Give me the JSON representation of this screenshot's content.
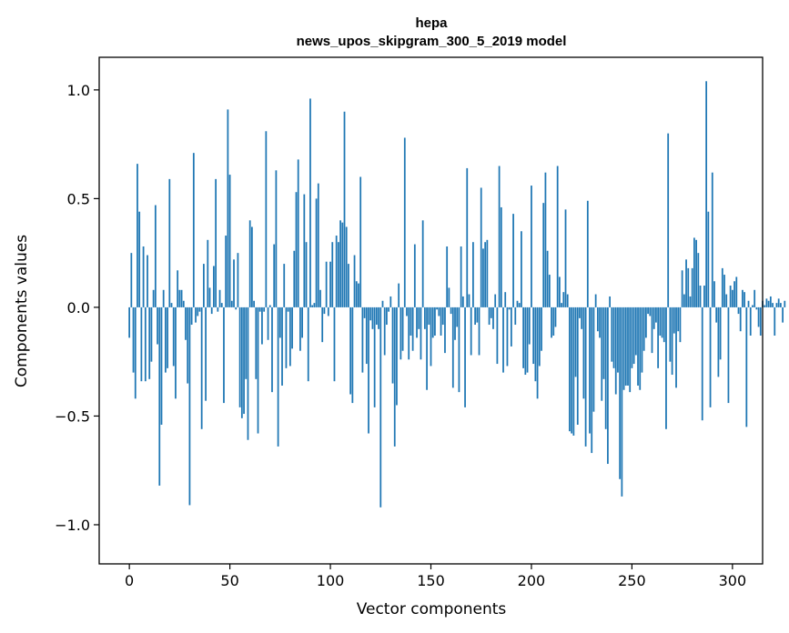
{
  "chart_data": {
    "type": "bar",
    "title": "hepa",
    "subtitle": "news_upos_skipgram_300_5_2019 model",
    "xlabel": "Vector components",
    "ylabel": "Components values",
    "xlim": [
      -15,
      315
    ],
    "ylim": [
      -1.18,
      1.15
    ],
    "x_ticks": [
      0,
      50,
      100,
      150,
      200,
      250,
      300
    ],
    "x_tick_labels": [
      "0",
      "50",
      "100",
      "150",
      "200",
      "250",
      "300"
    ],
    "y_ticks": [
      1.0,
      0.5,
      0.0,
      -0.5,
      -1.0
    ],
    "y_tick_labels": [
      "1.0",
      "0.5",
      "0.0",
      "−0.5",
      "−1.0"
    ],
    "bar_color": "#1f77b4",
    "values": [
      -0.14,
      0.25,
      -0.3,
      -0.42,
      0.66,
      0.44,
      -0.34,
      0.28,
      -0.34,
      0.24,
      -0.33,
      -0.25,
      0.08,
      0.47,
      -0.17,
      -0.82,
      -0.54,
      0.08,
      -0.3,
      -0.28,
      0.59,
      0.02,
      -0.27,
      -0.42,
      0.17,
      0.08,
      0.08,
      0.03,
      -0.15,
      -0.35,
      -0.91,
      -0.08,
      0.71,
      -0.07,
      -0.04,
      -0.02,
      -0.56,
      0.2,
      -0.43,
      0.31,
      0.09,
      -0.03,
      0.19,
      0.59,
      -0.02,
      0.08,
      0.02,
      -0.44,
      0.33,
      0.91,
      0.61,
      0.03,
      0.22,
      -0.01,
      0.25,
      -0.46,
      -0.51,
      -0.49,
      -0.33,
      -0.61,
      0.4,
      0.37,
      0.03,
      -0.33,
      -0.58,
      -0.02,
      -0.17,
      -0.02,
      0.81,
      -0.15,
      0.01,
      -0.39,
      0.29,
      0.63,
      -0.64,
      -0.14,
      -0.36,
      0.2,
      -0.28,
      -0.02,
      -0.27,
      -0.19,
      0.26,
      0.53,
      0.68,
      -0.2,
      -0.14,
      0.52,
      0.3,
      -0.34,
      0.96,
      0.01,
      0.02,
      0.5,
      0.57,
      0.08,
      -0.16,
      -0.03,
      0.21,
      -0.04,
      0.21,
      0.3,
      -0.34,
      0.33,
      0.3,
      0.4,
      0.39,
      0.9,
      0.37,
      0.2,
      -0.4,
      -0.44,
      0.24,
      0.12,
      0.11,
      0.6,
      -0.3,
      -0.05,
      -0.26,
      -0.58,
      -0.06,
      -0.1,
      -0.46,
      -0.08,
      -0.1,
      -0.92,
      0.03,
      -0.22,
      -0.08,
      -0.02,
      0.05,
      -0.35,
      -0.64,
      -0.45,
      0.11,
      -0.24,
      -0.2,
      0.78,
      -0.04,
      -0.24,
      -0.13,
      -0.2,
      0.29,
      -0.14,
      -0.1,
      -0.24,
      0.4,
      -0.1,
      -0.38,
      -0.08,
      -0.27,
      -0.14,
      -0.13,
      -0.01,
      -0.04,
      -0.13,
      -0.08,
      -0.21,
      0.28,
      0.09,
      -0.03,
      -0.37,
      -0.15,
      -0.09,
      -0.39,
      0.28,
      0.05,
      -0.46,
      0.64,
      0.06,
      -0.22,
      0.3,
      -0.08,
      -0.07,
      -0.22,
      0.55,
      0.27,
      0.3,
      0.31,
      -0.08,
      -0.05,
      -0.1,
      0.06,
      -0.26,
      0.65,
      0.46,
      -0.3,
      0.07,
      -0.27,
      -0.01,
      -0.18,
      0.43,
      -0.08,
      0.03,
      0.02,
      0.35,
      -0.28,
      -0.31,
      -0.3,
      -0.17,
      0.56,
      -0.26,
      -0.34,
      -0.42,
      -0.27,
      -0.2,
      0.48,
      0.62,
      0.26,
      0.15,
      -0.14,
      -0.13,
      -0.09,
      0.65,
      0.14,
      0.02,
      0.07,
      0.45,
      0.06,
      -0.57,
      -0.58,
      -0.59,
      -0.32,
      -0.54,
      -0.05,
      -0.1,
      -0.42,
      -0.64,
      0.49,
      -0.58,
      -0.67,
      -0.48,
      0.06,
      -0.11,
      -0.14,
      -0.43,
      -0.33,
      -0.56,
      -0.72,
      0.05,
      -0.25,
      -0.28,
      -0.4,
      -0.3,
      -0.79,
      -0.87,
      -0.38,
      -0.36,
      -0.36,
      -0.39,
      -0.28,
      -0.26,
      -0.22,
      -0.36,
      -0.38,
      -0.3,
      -0.2,
      -0.14,
      -0.03,
      -0.04,
      -0.21,
      -0.1,
      -0.07,
      -0.28,
      -0.13,
      -0.14,
      -0.16,
      -0.56,
      0.8,
      -0.25,
      -0.31,
      -0.12,
      -0.37,
      -0.11,
      -0.16,
      0.17,
      0.06,
      0.22,
      0.18,
      0.05,
      0.18,
      0.32,
      0.31,
      0.25,
      0.1,
      -0.52,
      0.1,
      1.04,
      0.44,
      -0.46,
      0.62,
      0.12,
      -0.07,
      -0.32,
      -0.24,
      0.18,
      0.15,
      0.06,
      -0.44,
      0.1,
      0.08,
      0.12,
      0.14,
      -0.03,
      -0.11,
      0.08,
      0.07,
      -0.55,
      0.03,
      -0.13,
      0.01,
      0.08,
      -0.01,
      -0.09,
      -0.13,
      0.03,
      0.01,
      0.04,
      0.03,
      0.05,
      0.02,
      -0.13,
      0.02,
      0.04,
      0.02,
      -0.07,
      0.03
    ]
  }
}
